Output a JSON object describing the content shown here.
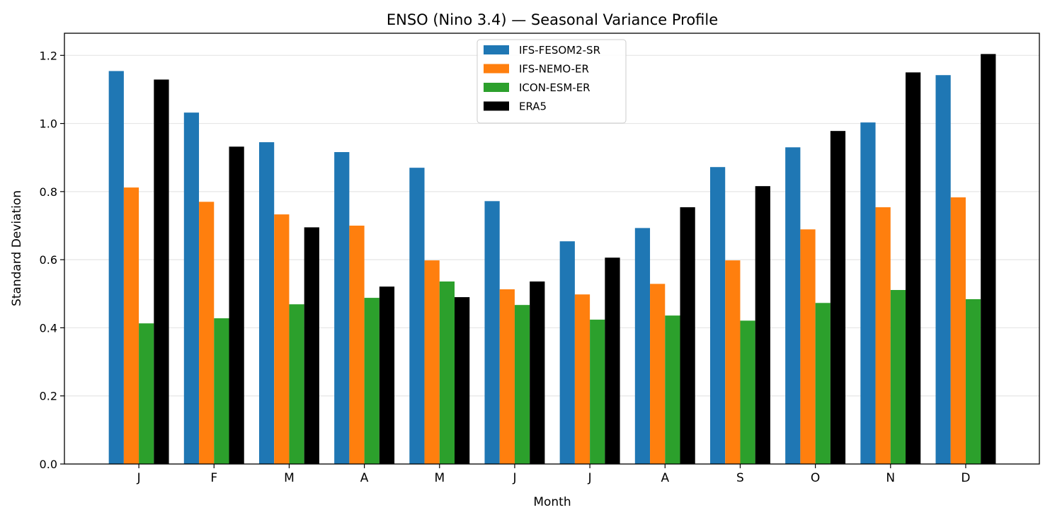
{
  "chart_data": {
    "type": "bar",
    "title": "ENSO (Nino 3.4) — Seasonal Variance Profile",
    "xlabel": "Month",
    "ylabel": "Standard Deviation",
    "categories": [
      "J",
      "F",
      "M",
      "A",
      "M",
      "J",
      "J",
      "A",
      "S",
      "O",
      "N",
      "D"
    ],
    "ylim": [
      0,
      1.265
    ],
    "yticks": [
      0.0,
      0.2,
      0.4,
      0.6,
      0.8,
      1.0,
      1.2
    ],
    "ytick_labels": [
      "0.0",
      "0.2",
      "0.4",
      "0.6",
      "0.8",
      "1.0",
      "1.2"
    ],
    "grid": "y",
    "legend_placement": "upper-center",
    "series": [
      {
        "name": "IFS-FESOM2-SR",
        "color": "#1f77b4",
        "values": [
          1.154,
          1.032,
          0.945,
          0.916,
          0.87,
          0.772,
          0.654,
          0.693,
          0.872,
          0.93,
          1.003,
          1.142
        ]
      },
      {
        "name": "IFS-NEMO-ER",
        "color": "#ff7f0e",
        "values": [
          0.812,
          0.77,
          0.733,
          0.7,
          0.598,
          0.513,
          0.498,
          0.529,
          0.598,
          0.689,
          0.754,
          0.783
        ]
      },
      {
        "name": "ICON-ESM-ER",
        "color": "#2ca02c",
        "values": [
          0.413,
          0.428,
          0.469,
          0.488,
          0.536,
          0.467,
          0.424,
          0.436,
          0.421,
          0.473,
          0.511,
          0.484
        ]
      },
      {
        "name": "ERA5",
        "color": "#000000",
        "values": [
          1.129,
          0.932,
          0.695,
          0.521,
          0.49,
          0.536,
          0.606,
          0.754,
          0.816,
          0.978,
          1.15,
          1.204
        ]
      }
    ]
  }
}
